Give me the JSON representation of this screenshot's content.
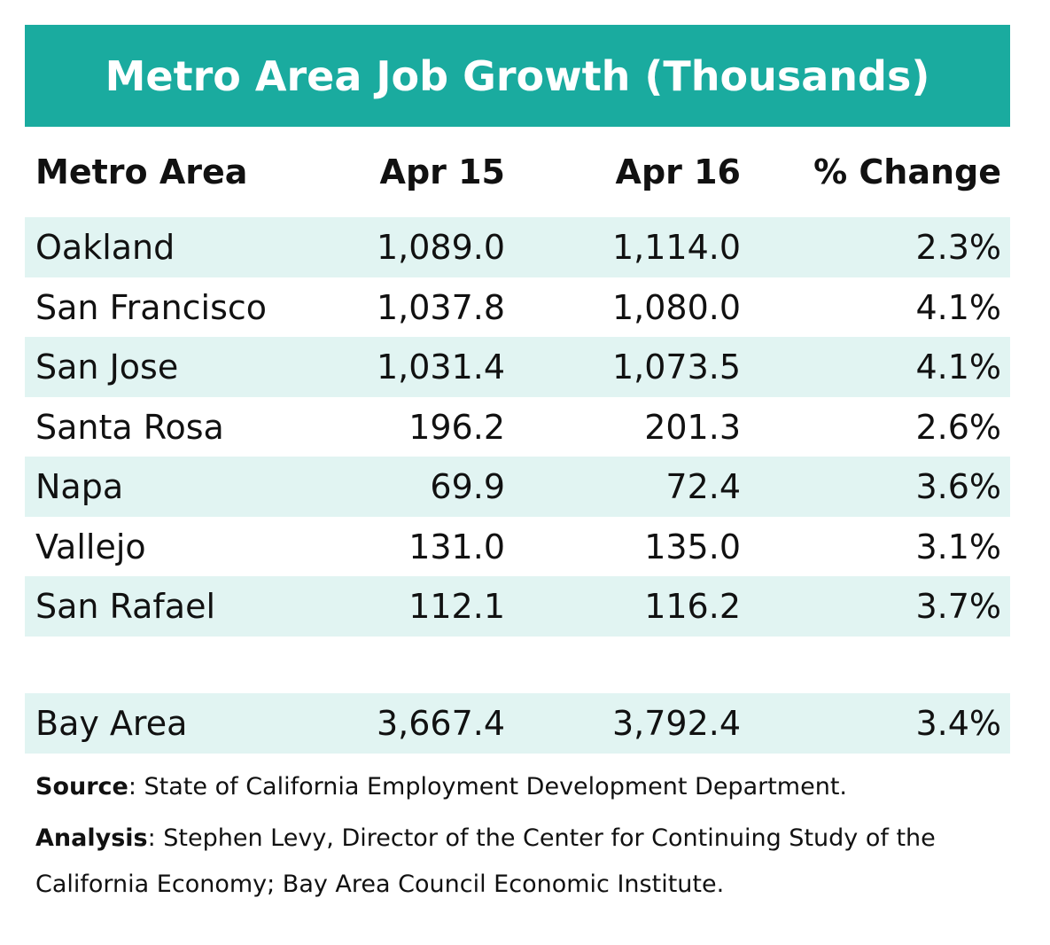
{
  "title": "Metro Area Job Growth (Thousands)",
  "table": {
    "header": [
      "Metro Area",
      "Apr 15",
      "Apr 16",
      "% Change"
    ],
    "rows": [
      [
        "Oakland",
        "1,089.0",
        "1,114.0",
        "2.3%"
      ],
      [
        "San Francisco",
        "1,037.8",
        "1,080.0",
        "4.1%"
      ],
      [
        "San Jose",
        "1,031.4",
        "1,073.5",
        "4.1%"
      ],
      [
        "Santa Rosa",
        "196.2",
        "201.3",
        "2.6%"
      ],
      [
        "Napa",
        "69.9",
        "72.4",
        "3.6%"
      ],
      [
        "Vallejo",
        "131.0",
        "135.0",
        "3.1%"
      ],
      [
        "San Rafael",
        "112.1",
        "116.2",
        "3.7%"
      ]
    ],
    "total": [
      "Bay Area",
      "3,667.4",
      "3,792.4",
      "3.4%"
    ]
  },
  "notes": {
    "source": {
      "label": "Source",
      "text": ": State of California Employment Development Department."
    },
    "analysis": {
      "label": "Analysis",
      "text": ": Stephen Levy, Director of the Center for Continuing Study of the California Economy; Bay Area Council Economic Institute."
    }
  }
}
